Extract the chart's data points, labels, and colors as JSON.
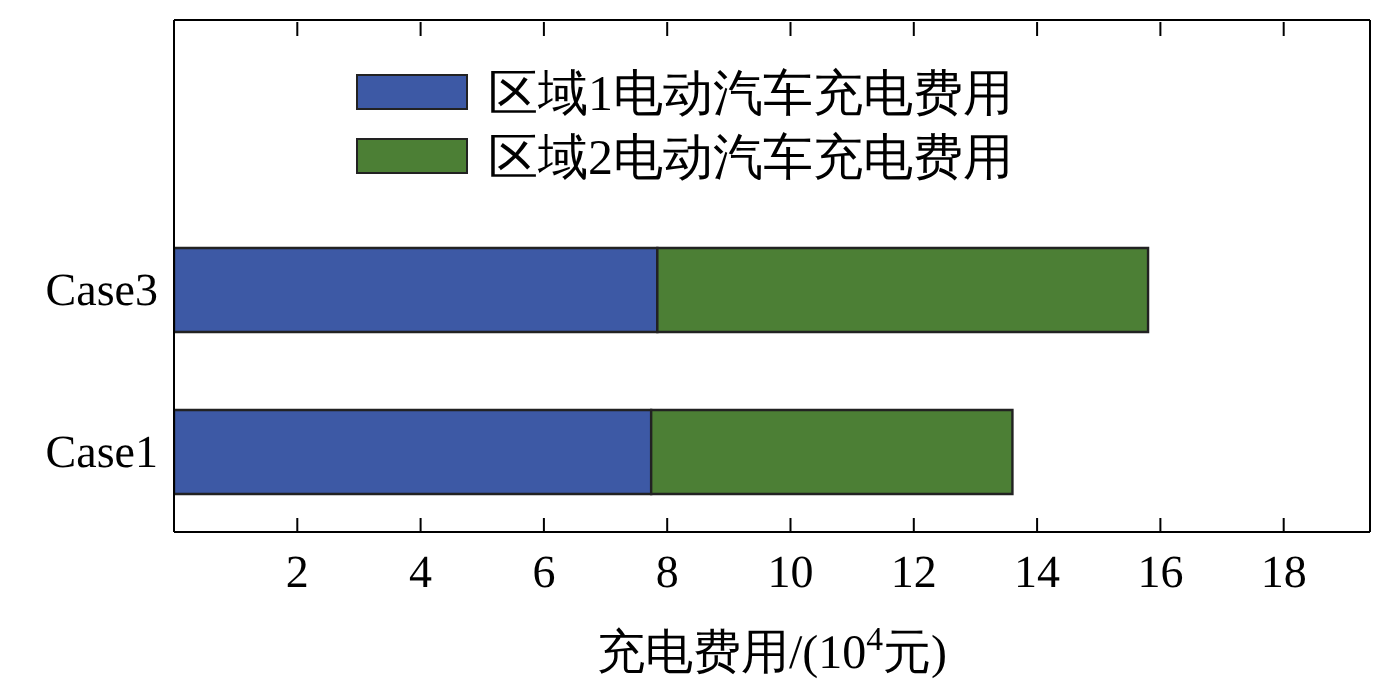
{
  "chart_data": {
    "type": "bar",
    "orientation": "horizontal",
    "stacked": true,
    "categories": [
      "Case3",
      "Case1"
    ],
    "xlabel": "充电费用/(10$^{4}$元)",
    "xlim": [
      0,
      19.4
    ],
    "xticks": [
      2,
      4,
      6,
      8,
      10,
      12,
      14,
      16,
      18
    ],
    "legend": "top",
    "grid": false,
    "series": [
      {
        "name": "区域1电动汽车充电费用",
        "color": "#3d59a5",
        "values": [
          7.84,
          7.74
        ]
      },
      {
        "name": "区域2电动汽车充电费用",
        "color": "#4c7f35",
        "values": [
          7.96,
          5.86
        ]
      }
    ]
  }
}
